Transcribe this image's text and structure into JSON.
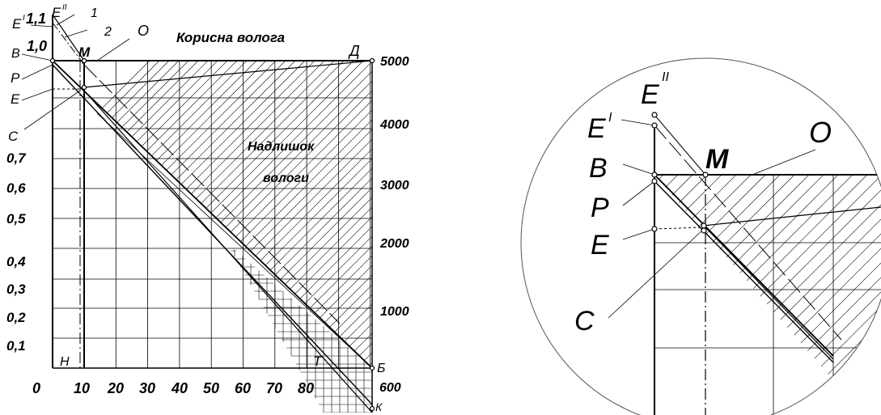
{
  "left_diagram": {
    "y_axis_left_ticks": [
      "0,1",
      "0,2",
      "0,3",
      "0,4",
      "0,5",
      "0,6",
      "0,7"
    ],
    "y_axis_top_ticks": [
      "1,0",
      "1,1"
    ],
    "x_axis_ticks": [
      "10",
      "20",
      "30",
      "40",
      "50",
      "60",
      "70",
      "80"
    ],
    "x_origin": "0",
    "y_axis_right_ticks": [
      "1000",
      "2000",
      "3000",
      "4000",
      "5000"
    ],
    "right_extra_tick": "600",
    "regions": {
      "useful_moisture": "Корисна волога",
      "excess_line1": "Надлишок",
      "excess_line2": "вологи"
    },
    "points": {
      "E1": "E",
      "E1_sup": "I",
      "E2": "E",
      "E2_sup": "II",
      "curve1": "1",
      "curve2": "2",
      "O": "О",
      "M": "М",
      "D": "Д",
      "B": "В",
      "P": "Р",
      "E": "E",
      "C": "С",
      "H": "Н",
      "T": "Т",
      "Bcyr": "Б",
      "K": "К"
    }
  },
  "zoom_detail": {
    "E1": "E",
    "E1_sup": "I",
    "E2": "E",
    "E2_sup": "II",
    "O": "O",
    "B": "B",
    "M": "M",
    "P": "P",
    "E": "E",
    "C": "C"
  }
}
